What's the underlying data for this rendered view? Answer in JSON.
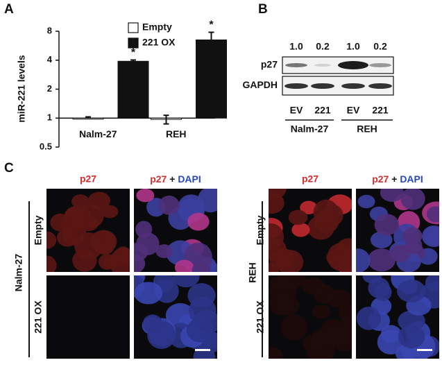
{
  "panel_labels": [
    "A",
    "B",
    "C"
  ],
  "chart_data": {
    "type": "bar",
    "y_label": "miR-221 levels",
    "categories": [
      "Nalm-27",
      "REH"
    ],
    "series": [
      {
        "name": "Empty",
        "color": "#ffffff",
        "values": [
          1.0,
          0.97
        ],
        "errors": [
          0.03,
          0.1
        ]
      },
      {
        "name": "221 OX",
        "color": "#111111",
        "values": [
          3.9,
          6.5
        ],
        "errors": [
          0.12,
          1.3
        ]
      }
    ],
    "annotations": [
      "*",
      "*"
    ],
    "ylim": [
      0.5,
      8
    ],
    "yticks": [
      0.5,
      1,
      2,
      4,
      8
    ],
    "log_base": 2,
    "baseline": 1
  },
  "blot": {
    "quantification": [
      "1.0",
      "0.2",
      "1.0",
      "0.2"
    ],
    "proteins": [
      "p27",
      "GAPDH"
    ],
    "lanes": [
      "EV",
      "221",
      "EV",
      "221"
    ],
    "groups": [
      "Nalm-27",
      "REH"
    ]
  },
  "microscopy": {
    "channel": "p27",
    "merge": [
      "p27",
      "+",
      "DAPI"
    ],
    "cell_lines": [
      "Nalm-27",
      "REH"
    ],
    "conditions": [
      "Empty",
      "221 OX"
    ]
  }
}
